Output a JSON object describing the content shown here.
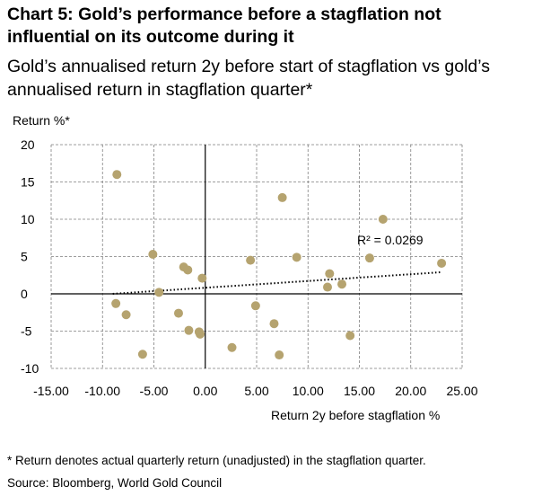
{
  "header": {
    "title": "Chart 5: Gold’s performance before a stagflation not influential on its outcome during it",
    "subtitle": "Gold’s annualised return 2y before start of stagflation vs gold’s annualised return in stagflation quarter*"
  },
  "footer": {
    "footnote": "* Return denotes actual quarterly return (unadjusted) in the stagflation quarter.",
    "source": "Source: Bloomberg, World Gold Council"
  },
  "chart_data": {
    "type": "scatter",
    "ylabel": "Return %*",
    "xlabel": "Return 2y before stagflation %",
    "xlim": [
      -15,
      25
    ],
    "ylim": [
      -10,
      20
    ],
    "x_ticks": [
      "-15.00",
      "-10.00",
      "-5.00",
      "0.00",
      "5.00",
      "10.00",
      "15.00",
      "20.00",
      "25.00"
    ],
    "y_ticks": [
      "20",
      "15",
      "10",
      "5",
      "0",
      "-5",
      "-10"
    ],
    "grid": true,
    "marker_color": "#b5a36f",
    "trendline": {
      "style": "dotted",
      "x": [
        -9,
        23
      ],
      "y": [
        0,
        2.9
      ],
      "label": "R² = 0.0269"
    },
    "points": [
      {
        "x": -8.6,
        "y": 16.0
      },
      {
        "x": -8.7,
        "y": -1.3
      },
      {
        "x": -7.7,
        "y": -2.8
      },
      {
        "x": -6.1,
        "y": -8.1
      },
      {
        "x": -5.1,
        "y": 5.3
      },
      {
        "x": -4.5,
        "y": 0.2
      },
      {
        "x": -2.6,
        "y": -2.6
      },
      {
        "x": -2.1,
        "y": 3.6
      },
      {
        "x": -1.7,
        "y": 3.2
      },
      {
        "x": -1.6,
        "y": -4.9
      },
      {
        "x": -0.6,
        "y": -5.1
      },
      {
        "x": -0.5,
        "y": -5.4
      },
      {
        "x": -0.3,
        "y": 2.1
      },
      {
        "x": 2.6,
        "y": -7.2
      },
      {
        "x": 4.4,
        "y": 4.5
      },
      {
        "x": 4.9,
        "y": -1.6
      },
      {
        "x": 6.7,
        "y": -4.0
      },
      {
        "x": 7.2,
        "y": -8.2
      },
      {
        "x": 7.5,
        "y": 12.9
      },
      {
        "x": 8.9,
        "y": 4.9
      },
      {
        "x": 11.9,
        "y": 0.9
      },
      {
        "x": 12.1,
        "y": 2.7
      },
      {
        "x": 13.3,
        "y": 1.3
      },
      {
        "x": 14.1,
        "y": -5.6
      },
      {
        "x": 16.0,
        "y": 4.8
      },
      {
        "x": 17.3,
        "y": 10.0
      },
      {
        "x": 23.0,
        "y": 4.1
      }
    ]
  }
}
